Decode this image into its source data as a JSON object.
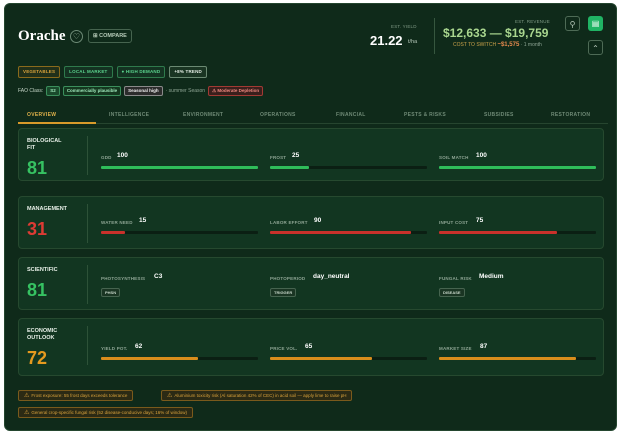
{
  "header": {
    "title": "Orache",
    "compare_label": "COMPARE",
    "yield_caption": "EST. YIELD",
    "yield_value": "21.22",
    "yield_unit": "t/ha",
    "revenue_caption": "EST. REVENUE",
    "revenue_range": "$12,633 — $19,759",
    "switch_label": "COST TO SWITCH",
    "switch_cost": "~$1,575",
    "switch_period": "· 1 month"
  },
  "chips": [
    "VEGETABLES",
    "LOCAL MARKET",
    "HIGH DEMAND",
    "+8% TREND"
  ],
  "fao": {
    "label": "FAO Class:",
    "class": "S2",
    "class_desc": "Commercially plausible",
    "seasonal": "Seasonal high",
    "season": "· summer Season",
    "depletion": "Moderate Depletion"
  },
  "tabs": [
    "OVERVIEW",
    "INTELLIGENCE",
    "ENVIRONMENT",
    "OPERATIONS",
    "FINANCIAL",
    "PESTS & RISKS",
    "SUBSIDIES",
    "RESTORATION"
  ],
  "cards": [
    {
      "label": "BIOLOGICAL FIT",
      "score": "81",
      "score_color": "#36c262",
      "metrics": [
        {
          "name": "GDD",
          "value": "100",
          "level": 100,
          "color": "#2fbd5a"
        },
        {
          "name": "FROST",
          "value": "25",
          "level": 25,
          "color": "#2fbd5a"
        },
        {
          "name": "SOIL MATCH",
          "value": "100",
          "level": 100,
          "color": "#2fbd5a"
        }
      ]
    },
    {
      "label": "MANAGEMENT",
      "score": "31",
      "score_color": "#dd3b34",
      "metrics": [
        {
          "name": "WATER NEED",
          "value": "15",
          "level": 15,
          "color": "#c9312b"
        },
        {
          "name": "LABOR EFFORT",
          "value": "90",
          "level": 90,
          "color": "#c9312b"
        },
        {
          "name": "INPUT COST",
          "value": "75",
          "level": 75,
          "color": "#c9312b"
        }
      ]
    },
    {
      "label": "SCIENTIFIC",
      "score": "81",
      "score_color": "#36c262",
      "metrics": [
        {
          "name": "PHOTOSYNTHESIS",
          "value": "C3",
          "tag": "PHSN"
        },
        {
          "name": "PHOTOPERIOD",
          "value": "day_neutral",
          "tag": "TRIGGER"
        },
        {
          "name": "FUNGAL RISK",
          "value": "Medium",
          "tag": "DISEASE"
        }
      ]
    },
    {
      "label": "ECONOMIC OUTLOOK",
      "score": "72",
      "score_color": "#e59a1f",
      "metrics": [
        {
          "name": "YIELD POT.",
          "value": "62",
          "level": 62,
          "color": "#d98d1c"
        },
        {
          "name": "PRICE VOL.",
          "value": "65",
          "level": 65,
          "color": "#d98d1c"
        },
        {
          "name": "MARKET SIZE",
          "value": "87",
          "level": 87,
          "color": "#d98d1c"
        }
      ]
    }
  ],
  "warnings": [
    "Frost exposure: 55 frost days exceeds tolerance",
    "Aluminium toxicity risk (Al saturation 42% of CEC) in acid soil — apply lime to raise pH",
    "General crop-specific fungal risk (52 disease-conducive days; 16% of window)"
  ]
}
